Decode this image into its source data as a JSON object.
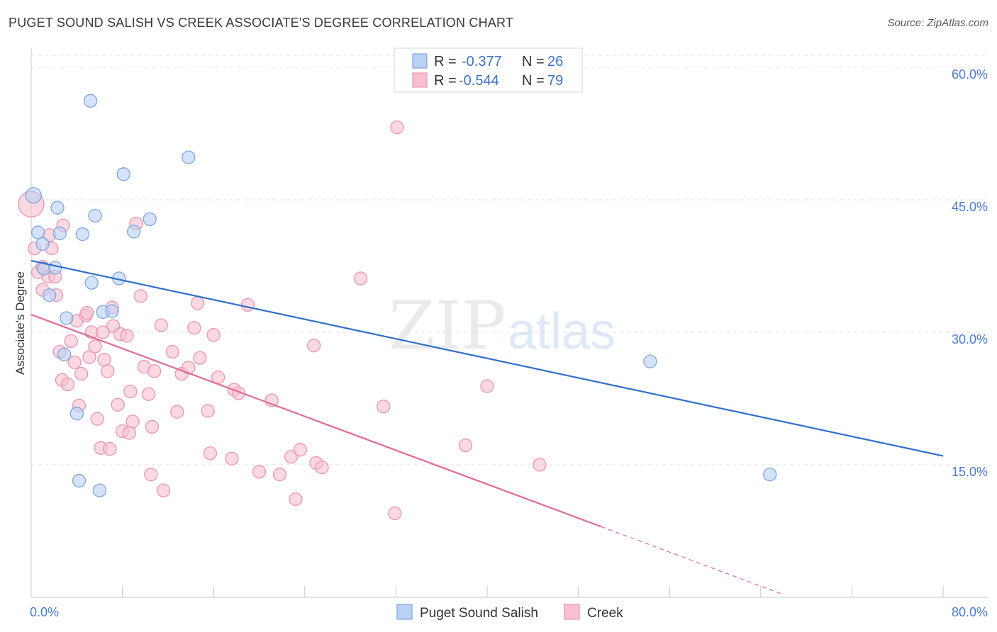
{
  "title": "PUGET SOUND SALISH VS CREEK ASSOCIATE'S DEGREE CORRELATION CHART",
  "source": "Source: ZipAtlas.com",
  "watermark": {
    "zip": "ZIP",
    "atlas": "atlas"
  },
  "colors": {
    "blue_fill": "#b9d1f3",
    "blue_stroke": "#7ea6e0",
    "blue_line": "#2f6fcc",
    "pink_fill": "#f7bfd0",
    "pink_stroke": "#ec94b1",
    "pink_line": "#e06a94",
    "grid": "#e2e2e2",
    "tick_text": "#4a7bd0"
  },
  "legend": {
    "entries": [
      {
        "r_label": "R =",
        "r_value": "-0.377",
        "n_label": "N =",
        "n_value": "26"
      },
      {
        "r_label": "R =",
        "r_value": "-0.544",
        "n_label": "N =",
        "n_value": "79"
      }
    ]
  },
  "chart_data": {
    "type": "scatter",
    "title": "PUGET SOUND SALISH VS CREEK ASSOCIATE'S DEGREE CORRELATION CHART",
    "xlabel": "",
    "ylabel": "Associate's Degree",
    "xlim": [
      0,
      80
    ],
    "ylim": [
      0,
      62
    ],
    "x_tick_labels": [
      "0.0%",
      "80.0%"
    ],
    "y_ticks": [
      15,
      30,
      45,
      60
    ],
    "y_tick_labels": [
      "15.0%",
      "30.0%",
      "45.0%",
      "60.0%"
    ],
    "grid": true,
    "legend_position": "top-center",
    "series": [
      {
        "name": "Puget Sound Salish",
        "color": "#b9d1f3",
        "points": [
          [
            0.2,
            45.5
          ],
          [
            0.6,
            41.3
          ],
          [
            1.0,
            40.0
          ],
          [
            1.1,
            37.2
          ],
          [
            1.6,
            34.2
          ],
          [
            2.1,
            37.3
          ],
          [
            2.3,
            44.1
          ],
          [
            2.5,
            41.2
          ],
          [
            2.9,
            27.5
          ],
          [
            3.1,
            31.6
          ],
          [
            4.0,
            20.8
          ],
          [
            4.2,
            13.2
          ],
          [
            4.5,
            41.1
          ],
          [
            5.2,
            56.2
          ],
          [
            5.3,
            35.6
          ],
          [
            5.6,
            43.2
          ],
          [
            6.0,
            12.1
          ],
          [
            6.3,
            32.3
          ],
          [
            7.1,
            32.4
          ],
          [
            7.7,
            36.1
          ],
          [
            8.1,
            47.9
          ],
          [
            9.0,
            41.4
          ],
          [
            10.4,
            42.8
          ],
          [
            13.8,
            49.8
          ],
          [
            54.3,
            26.7
          ],
          [
            64.8,
            13.9
          ]
        ],
        "trend": {
          "x": [
            0,
            80
          ],
          "y": [
            38.1,
            16.0
          ]
        }
      },
      {
        "name": "Creek",
        "color": "#f7bfd0",
        "points": [
          [
            0.0,
            44.5
          ],
          [
            0.3,
            39.5
          ],
          [
            0.6,
            36.8
          ],
          [
            1.0,
            37.4
          ],
          [
            1.0,
            34.8
          ],
          [
            1.5,
            36.3
          ],
          [
            1.6,
            41.0
          ],
          [
            1.8,
            39.5
          ],
          [
            2.1,
            36.3
          ],
          [
            2.2,
            34.2
          ],
          [
            2.5,
            27.8
          ],
          [
            2.7,
            24.6
          ],
          [
            2.8,
            42.1
          ],
          [
            3.2,
            24.1
          ],
          [
            3.5,
            29.0
          ],
          [
            3.8,
            26.6
          ],
          [
            4.0,
            31.3
          ],
          [
            4.2,
            21.7
          ],
          [
            4.4,
            25.3
          ],
          [
            4.8,
            31.9
          ],
          [
            4.9,
            32.2
          ],
          [
            5.1,
            27.2
          ],
          [
            5.3,
            30.0
          ],
          [
            5.6,
            28.4
          ],
          [
            5.8,
            20.2
          ],
          [
            6.1,
            16.9
          ],
          [
            6.3,
            30.0
          ],
          [
            6.4,
            26.9
          ],
          [
            6.7,
            25.6
          ],
          [
            6.9,
            16.8
          ],
          [
            7.1,
            32.8
          ],
          [
            7.2,
            30.7
          ],
          [
            7.6,
            21.8
          ],
          [
            7.8,
            29.8
          ],
          [
            8.0,
            18.8
          ],
          [
            8.4,
            29.6
          ],
          [
            8.6,
            18.6
          ],
          [
            8.7,
            23.3
          ],
          [
            8.9,
            19.9
          ],
          [
            9.2,
            42.3
          ],
          [
            9.6,
            34.1
          ],
          [
            9.9,
            26.1
          ],
          [
            10.3,
            23.0
          ],
          [
            10.5,
            13.9
          ],
          [
            10.6,
            19.3
          ],
          [
            10.8,
            25.6
          ],
          [
            11.4,
            30.8
          ],
          [
            11.6,
            12.1
          ],
          [
            12.4,
            27.8
          ],
          [
            12.8,
            21.0
          ],
          [
            13.2,
            25.3
          ],
          [
            13.8,
            26.0
          ],
          [
            14.3,
            30.5
          ],
          [
            14.6,
            33.3
          ],
          [
            14.8,
            27.1
          ],
          [
            15.5,
            21.1
          ],
          [
            15.7,
            16.3
          ],
          [
            16.0,
            29.7
          ],
          [
            16.4,
            24.9
          ],
          [
            17.6,
            15.7
          ],
          [
            17.8,
            23.5
          ],
          [
            18.2,
            23.1
          ],
          [
            19.0,
            33.1
          ],
          [
            20.0,
            14.2
          ],
          [
            21.1,
            22.3
          ],
          [
            21.8,
            13.9
          ],
          [
            22.8,
            15.9
          ],
          [
            23.2,
            11.1
          ],
          [
            23.6,
            16.7
          ],
          [
            24.8,
            28.5
          ],
          [
            25.0,
            15.2
          ],
          [
            25.5,
            14.7
          ],
          [
            28.9,
            36.1
          ],
          [
            30.9,
            21.6
          ],
          [
            31.9,
            9.5
          ],
          [
            32.1,
            53.2
          ],
          [
            38.1,
            17.2
          ],
          [
            40.0,
            23.9
          ],
          [
            44.6,
            15.0
          ]
        ],
        "trend": {
          "x": [
            0,
            50
          ],
          "y": [
            32.0,
            8.0
          ]
        },
        "trend_extension": {
          "x": [
            50,
            66
          ],
          "y": [
            8.0,
            0.3
          ]
        }
      }
    ]
  },
  "bottom_legend": [
    "Puget Sound Salish",
    "Creek"
  ]
}
